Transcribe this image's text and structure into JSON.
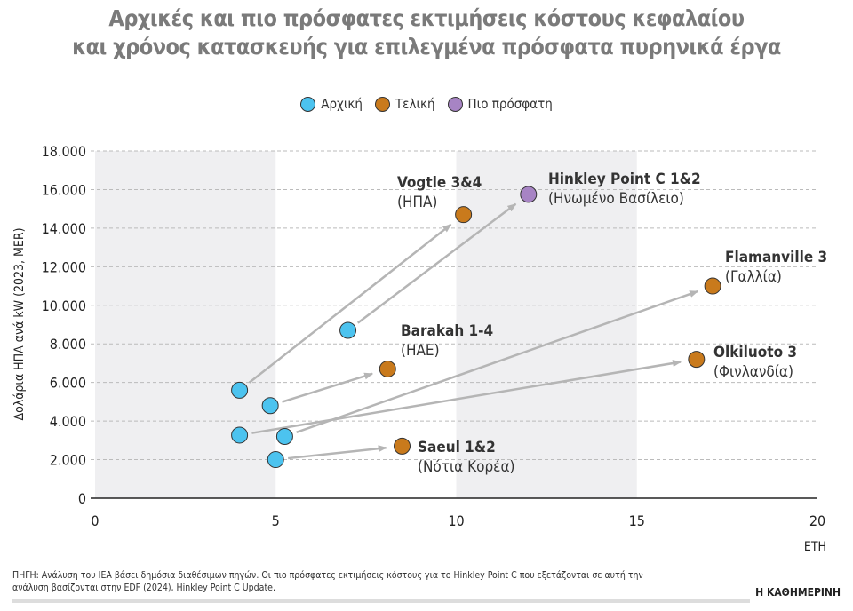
{
  "title_line1": "Αρχικές και πιο πρόσφατες εκτιμήσεις κόστους κεφαλαίου",
  "title_line2": "και χρόνος κατασκευής για επιλεγμένα πρόσφατα πυρηνικά έργα",
  "source": "ΠΗΓΗ: Ανάλυση του IEA βάσει δημόσια διαθέσιμων πηγών. Οι πιο πρόσφατες εκτιμήσεις κόστους για το Hinkley Point C που εξετάζονται σε αυτή την ανάλυση βασίζονται στην EDF (2024), Hinkley Point C Update.",
  "brand": "Η ΚΑΘΗΜΕΡΙΝΗ",
  "chart_data": {
    "type": "scatter",
    "xlabel": "ΕΤΗ",
    "ylabel": "Δολάρια ΗΠΑ ανά kW (2023, MER)",
    "xlim": [
      0,
      20
    ],
    "ylim": [
      0,
      18000
    ],
    "x_ticks": [
      "0",
      "5",
      "10",
      "15",
      "20"
    ],
    "y_ticks": [
      "0",
      "2.000",
      "4.000",
      "6.000",
      "8.000",
      "10.000",
      "12.000",
      "14.000",
      "16.000",
      "18.000"
    ],
    "grid": "horizontal dashed",
    "shaded_x_bands": [
      [
        0,
        5
      ],
      [
        10,
        15
      ]
    ],
    "legend_placement": "top",
    "legend": [
      {
        "name": "Αρχική",
        "color": "#4cc3ef"
      },
      {
        "name": "Τελική",
        "color": "#c97a1c"
      },
      {
        "name": "Πιο πρόσφατη",
        "color": "#a784c4"
      }
    ],
    "projects": [
      {
        "name": "Vogtle 3&4",
        "country": "(ΗΠΑ)",
        "initial": [
          4,
          5600
        ],
        "final": [
          10.2,
          14700
        ],
        "final_type": "Τελική"
      },
      {
        "name": "Hinkley Point C 1&2",
        "country": "(Ηνωμένο Βασίλειο)",
        "initial": [
          7,
          8700
        ],
        "final": [
          12,
          15750
        ],
        "final_type": "Πιο πρόσφατη"
      },
      {
        "name": "Flamanville 3",
        "country": "(Γαλλία)",
        "initial": [
          5.25,
          3200
        ],
        "final": [
          17.1,
          11000
        ],
        "final_type": "Τελική"
      },
      {
        "name": "Barakah 1-4",
        "country": "(ΗΑΕ)",
        "initial": [
          4.85,
          4800
        ],
        "final": [
          8.1,
          6700
        ],
        "final_type": "Τελική"
      },
      {
        "name": "Olkiluoto 3",
        "country": "(Φινλανδία)",
        "initial": [
          4,
          3270
        ],
        "final": [
          16.65,
          7200
        ],
        "final_type": "Τελική"
      },
      {
        "name": "Saeul 1&2",
        "country": "(Νότια Κορέα)",
        "initial": [
          5,
          2000
        ],
        "final": [
          8.5,
          2700
        ],
        "final_type": "Τελική"
      }
    ]
  }
}
